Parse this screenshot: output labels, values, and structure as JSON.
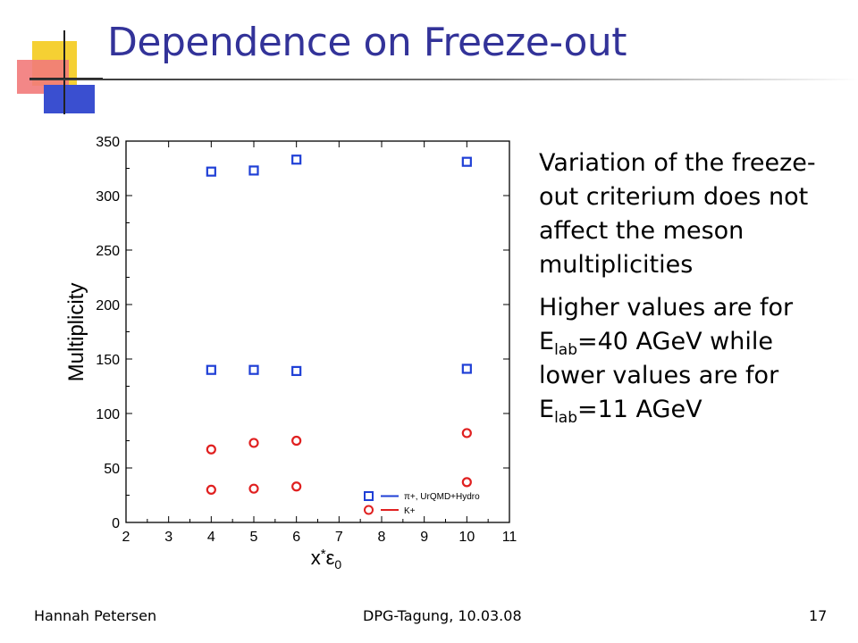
{
  "slide": {
    "title": "Dependence on Freeze-out",
    "text": {
      "para1": "Variation of the freeze-out criterium does not affect the meson multiplicities",
      "para2_a": "Higher values are for",
      "para2_e1": "E",
      "para2_sub1": "lab",
      "para2_b": "=40 AGeV while",
      "para2_c": "lower values are for",
      "para2_e2": "E",
      "para2_sub2": "lab",
      "para2_d": "=11 AGeV"
    },
    "footer": {
      "author": "Hannah Petersen",
      "event": "DPG-Tagung, 10.03.08",
      "page": "17"
    }
  },
  "chart_data": {
    "type": "scatter",
    "xlabel": "x*ε0",
    "ylabel": "Multiplicity",
    "xlim": [
      2,
      11
    ],
    "ylim": [
      0,
      350
    ],
    "xticks": [
      2,
      3,
      4,
      5,
      6,
      7,
      8,
      9,
      10,
      11
    ],
    "yticks": [
      0,
      50,
      100,
      150,
      200,
      250,
      300,
      350
    ],
    "legend_position": "bottom-right",
    "legend": [
      "π+, UrQMD+Hydro",
      "K+"
    ],
    "series": [
      {
        "name": "π+, UrQMD+Hydro",
        "marker": "square",
        "color": "#1f3fd6",
        "points": [
          [
            4,
            322
          ],
          [
            5,
            323
          ],
          [
            6,
            333
          ],
          [
            10,
            331
          ],
          [
            4,
            140
          ],
          [
            5,
            140
          ],
          [
            6,
            139
          ],
          [
            10,
            141
          ]
        ]
      },
      {
        "name": "K+",
        "marker": "circle",
        "color": "#e02020",
        "points": [
          [
            4,
            67
          ],
          [
            5,
            73
          ],
          [
            6,
            75
          ],
          [
            10,
            82
          ],
          [
            4,
            30
          ],
          [
            5,
            31
          ],
          [
            6,
            33
          ],
          [
            10,
            37
          ]
        ]
      }
    ]
  }
}
